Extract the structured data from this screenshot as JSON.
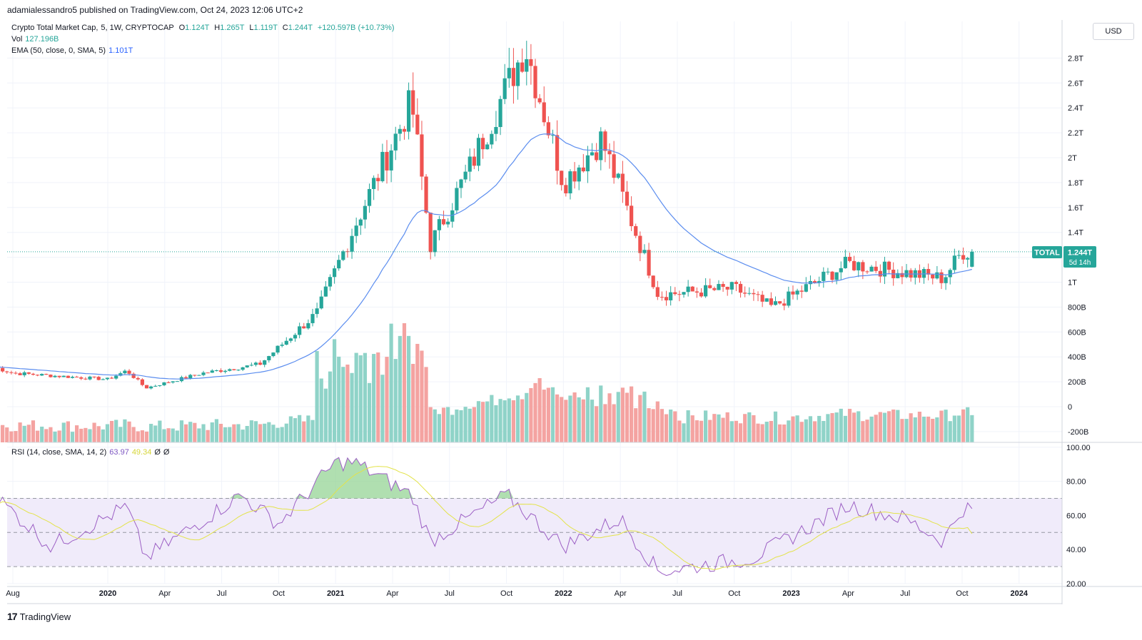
{
  "header": {
    "published": "adamialessandro5 published on TradingView.com, Oct 24, 2023 12:06 UTC+2"
  },
  "legend": {
    "symbol": "Crypto Total Market Cap,  5, 1W, CRYPTOCAP",
    "o_label": "O",
    "o": "1.124T",
    "h_label": "H",
    "h": "1.265T",
    "l_label": "L",
    "l": "1.119T",
    "c_label": "C",
    "c": "1.244T",
    "change": "+120.597B (+10.73%)",
    "vol_label": "Vol",
    "vol": "127.196B",
    "ema_label": "EMA (50, close, 0, SMA, 5)",
    "ema": "1.101T"
  },
  "rsi_legend": {
    "label": "RSI (14, close, SMA, 14, 2)",
    "value": "63.97",
    "sma": "49.34",
    "z1": "Ø",
    "z2": "Ø"
  },
  "currency_button": "USD",
  "price_scale": {
    "labels": [
      "2.8T",
      "2.6T",
      "2.4T",
      "2.2T",
      "2T",
      "1.8T",
      "1.6T",
      "1.4T",
      "1T",
      "800B",
      "600B",
      "400B",
      "200B",
      "0",
      "-200B"
    ]
  },
  "rsi_scale": {
    "labels": [
      "100.00",
      "80.00",
      "60.00",
      "40.00",
      "20.00"
    ]
  },
  "time_axis": {
    "labels": [
      "Aug",
      "2020",
      "Apr",
      "Jul",
      "Oct",
      "2021",
      "Apr",
      "Jul",
      "Oct",
      "2022",
      "Apr",
      "Jul",
      "Oct",
      "2023",
      "Apr",
      "Jul",
      "Oct",
      "2024"
    ]
  },
  "last_price_tag": {
    "symbol": "TOTAL",
    "price": "1.244T",
    "countdown": "5d 14h"
  },
  "footer": {
    "brand": "TradingView"
  },
  "colors": {
    "up": "#26a69a",
    "down": "#ef5350",
    "vol_up": "#8fd3c8",
    "vol_down": "#f4a3a1",
    "ema": "#5b8def",
    "rsi": "#9c5fc4",
    "rsi_sma": "#e3e34a",
    "rsi_band": "#f0ebfa"
  },
  "chart_data": {
    "type": "candlestick",
    "title": "Crypto Total Market Cap, 5, 1W, CRYPTOCAP",
    "interval": "1W",
    "x_range": [
      "2019-07",
      "2023-10"
    ],
    "y_unit": "USD",
    "price_anchors": [
      {
        "date": "2019-07",
        "close": 320000000000
      },
      {
        "date": "2019-08",
        "close": 270000000000
      },
      {
        "date": "2020-01",
        "close": 220000000000
      },
      {
        "date": "2020-02",
        "close": 290000000000
      },
      {
        "date": "2020-03",
        "close": 150000000000
      },
      {
        "date": "2020-06",
        "close": 270000000000
      },
      {
        "date": "2020-09",
        "close": 340000000000
      },
      {
        "date": "2020-12",
        "close": 750000000000
      },
      {
        "date": "2021-02",
        "close": 1450000000000
      },
      {
        "date": "2021-05",
        "close": 2450000000000
      },
      {
        "date": "2021-06",
        "close": 1300000000000
      },
      {
        "date": "2021-08",
        "close": 1900000000000
      },
      {
        "date": "2021-11",
        "close": 2900000000000
      },
      {
        "date": "2022-01",
        "close": 1800000000000
      },
      {
        "date": "2022-03",
        "close": 2150000000000
      },
      {
        "date": "2022-06",
        "close": 900000000000
      },
      {
        "date": "2022-10",
        "close": 950000000000
      },
      {
        "date": "2022-12",
        "close": 800000000000
      },
      {
        "date": "2023-04",
        "close": 1150000000000
      },
      {
        "date": "2023-09",
        "close": 1030000000000
      },
      {
        "date": "2023-10",
        "close": 1244000000000
      }
    ],
    "last": {
      "open": 1124000000000,
      "high": 1265000000000,
      "low": 1119000000000,
      "close": 1244000000000,
      "change": 120597000000,
      "change_pct": 10.73
    },
    "volume_last": 127196000000,
    "ema_50": 1101000000000,
    "rsi": {
      "period": 14,
      "value": 63.97,
      "sma": 49.34,
      "overbought": 70,
      "oversold": 30,
      "anchors": [
        {
          "date": "2019-07",
          "v": 72
        },
        {
          "date": "2019-10",
          "v": 42
        },
        {
          "date": "2020-02",
          "v": 65
        },
        {
          "date": "2020-03",
          "v": 35
        },
        {
          "date": "2020-08",
          "v": 72
        },
        {
          "date": "2020-10",
          "v": 55
        },
        {
          "date": "2021-01",
          "v": 91
        },
        {
          "date": "2021-02",
          "v": 91
        },
        {
          "date": "2021-05",
          "v": 72
        },
        {
          "date": "2021-06",
          "v": 45
        },
        {
          "date": "2021-10",
          "v": 72
        },
        {
          "date": "2022-01",
          "v": 42
        },
        {
          "date": "2022-04",
          "v": 58
        },
        {
          "date": "2022-06",
          "v": 27
        },
        {
          "date": "2022-11",
          "v": 35
        },
        {
          "date": "2023-04",
          "v": 66
        },
        {
          "date": "2023-07",
          "v": 58
        },
        {
          "date": "2023-09",
          "v": 45
        },
        {
          "date": "2023-10",
          "v": 64
        }
      ]
    }
  }
}
